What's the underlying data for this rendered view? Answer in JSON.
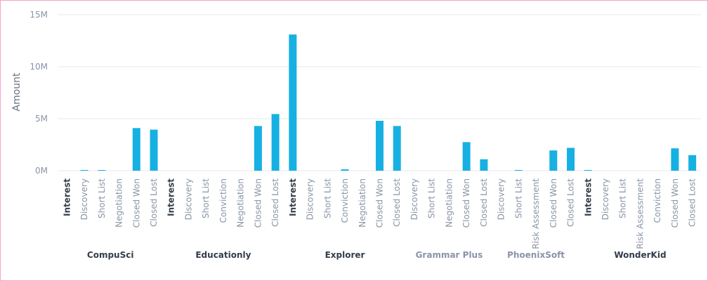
{
  "chart_data": {
    "type": "bar",
    "ylabel": "Amount",
    "ylim": [
      0,
      15000000
    ],
    "yticks": [
      {
        "value": 0,
        "label": "0M"
      },
      {
        "value": 5000000,
        "label": "5M"
      },
      {
        "value": 10000000,
        "label": "10M"
      },
      {
        "value": 15000000,
        "label": "15M"
      }
    ],
    "grid": true,
    "bar_color": "#16b1e2",
    "groups": [
      {
        "name": "CompuSci",
        "bold_dark": true,
        "categories": [
          {
            "label": "Interest",
            "bold": true,
            "value": 0
          },
          {
            "label": "Discovery",
            "value": 60000
          },
          {
            "label": "Short List",
            "value": 60000
          },
          {
            "label": "Negotiation",
            "value": 0
          },
          {
            "label": "Closed Won",
            "value": 4100000
          },
          {
            "label": "Closed Lost",
            "value": 3950000
          }
        ]
      },
      {
        "name": "Educationly",
        "bold_dark": true,
        "categories": [
          {
            "label": "Interest",
            "bold": true,
            "value": 0
          },
          {
            "label": "Discovery",
            "value": 0
          },
          {
            "label": "Short List",
            "value": 0
          },
          {
            "label": "Conviction",
            "value": 0
          },
          {
            "label": "Negotiation",
            "value": 0
          },
          {
            "label": "Closed Won",
            "value": 4300000
          },
          {
            "label": "Closed Lost",
            "value": 5450000
          }
        ]
      },
      {
        "name": "Explorer",
        "bold_dark": true,
        "categories": [
          {
            "label": "Interest",
            "bold": true,
            "value": 13100000
          },
          {
            "label": "Discovery",
            "value": 0
          },
          {
            "label": "Short List",
            "value": 0
          },
          {
            "label": "Conviction",
            "value": 130000
          },
          {
            "label": "Negotiation",
            "value": 0
          },
          {
            "label": "Closed Won",
            "value": 4800000
          },
          {
            "label": "Closed Lost",
            "value": 4300000
          }
        ]
      },
      {
        "name": "Grammar Plus",
        "bold_dark": false,
        "categories": [
          {
            "label": "Discovery",
            "value": 0
          },
          {
            "label": "Short List",
            "value": 0
          },
          {
            "label": "Negotiation",
            "value": 0
          },
          {
            "label": "Closed Won",
            "value": 2750000
          },
          {
            "label": "Closed Lost",
            "value": 1100000
          }
        ]
      },
      {
        "name": "PhoenixSoft",
        "bold_dark": false,
        "categories": [
          {
            "label": "Discovery",
            "value": 0
          },
          {
            "label": "Short List",
            "value": 60000
          },
          {
            "label": "Risk Assessment",
            "value": 0
          },
          {
            "label": "Closed Won",
            "value": 1950000
          },
          {
            "label": "Closed Lost",
            "value": 2200000
          }
        ]
      },
      {
        "name": "WonderKid",
        "bold_dark": true,
        "categories": [
          {
            "label": "Interest",
            "bold": true,
            "value": 60000
          },
          {
            "label": "Discovery",
            "value": 0
          },
          {
            "label": "Short List",
            "value": 0
          },
          {
            "label": "Risk Assessment",
            "value": 0
          },
          {
            "label": "Conviction",
            "value": 0
          },
          {
            "label": "Closed Won",
            "value": 2150000
          },
          {
            "label": "Closed Lost",
            "value": 1500000
          }
        ]
      }
    ]
  }
}
